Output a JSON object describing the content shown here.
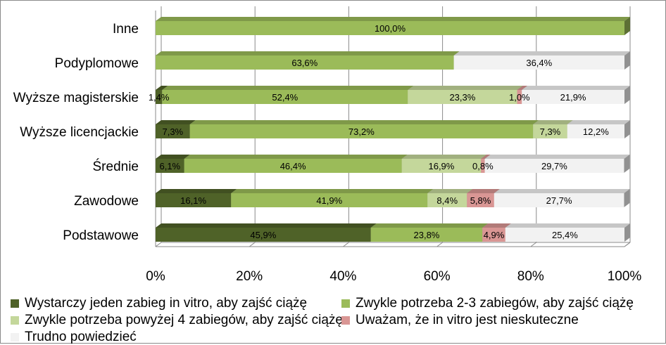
{
  "chart_data": {
    "type": "bar",
    "orientation": "horizontal-stacked-100",
    "categories": [
      "Inne",
      "Podyplomowe",
      "Wyższe magisterskie",
      "Wyższe licencjackie",
      "Średnie",
      "Zawodowe",
      "Podstawowe"
    ],
    "series": [
      {
        "name": "Wystarczy jeden zabieg in vitro, aby zajść ciążę",
        "color": "#4f6228",
        "values": [
          0,
          0,
          1.4,
          7.3,
          6.1,
          16.1,
          45.9
        ],
        "labels": [
          "",
          "",
          "1,4%",
          "7,3%",
          "6,1%",
          "16,1%",
          "45,9%"
        ]
      },
      {
        "name": "Zwykle potrzeba 2-3 zabiegów, aby zajść ciążę",
        "color": "#9bbb59",
        "values": [
          100.0,
          63.6,
          52.4,
          73.2,
          46.4,
          41.9,
          23.8
        ],
        "labels": [
          "100,0%",
          "63,6%",
          "52,4%",
          "73,2%",
          "46,4%",
          "41,9%",
          "23,8%"
        ]
      },
      {
        "name": "Zwykle potrzeba powyżej 4 zabiegów, aby zajść ciążę",
        "color": "#c4d79b",
        "values": [
          0,
          0,
          23.3,
          7.3,
          16.9,
          8.4,
          0
        ],
        "labels": [
          "",
          "",
          "23,3%",
          "7,3%",
          "16,9%",
          "8,4%",
          ""
        ]
      },
      {
        "name": "Uważam, że in vitro jest nieskuteczne",
        "color": "#d99694",
        "values": [
          0,
          0,
          1.0,
          0,
          0.8,
          5.8,
          4.9
        ],
        "labels": [
          "",
          "",
          "1,0%",
          "",
          "0,8%",
          "5,8%",
          "4,9%"
        ]
      },
      {
        "name": "Trudno powiedzieć",
        "color": "#f2f2f2",
        "values": [
          0,
          36.4,
          21.9,
          12.2,
          29.7,
          27.7,
          25.4
        ],
        "labels": [
          "",
          "36,4%",
          "21,9%",
          "12,2%",
          "29,7%",
          "27,7%",
          "25,4%"
        ]
      }
    ],
    "xlim": [
      0,
      100
    ],
    "ticks": [
      "0%",
      "20%",
      "40%",
      "60%",
      "80%",
      "100%"
    ],
    "grid": true,
    "legend_position": "bottom"
  }
}
